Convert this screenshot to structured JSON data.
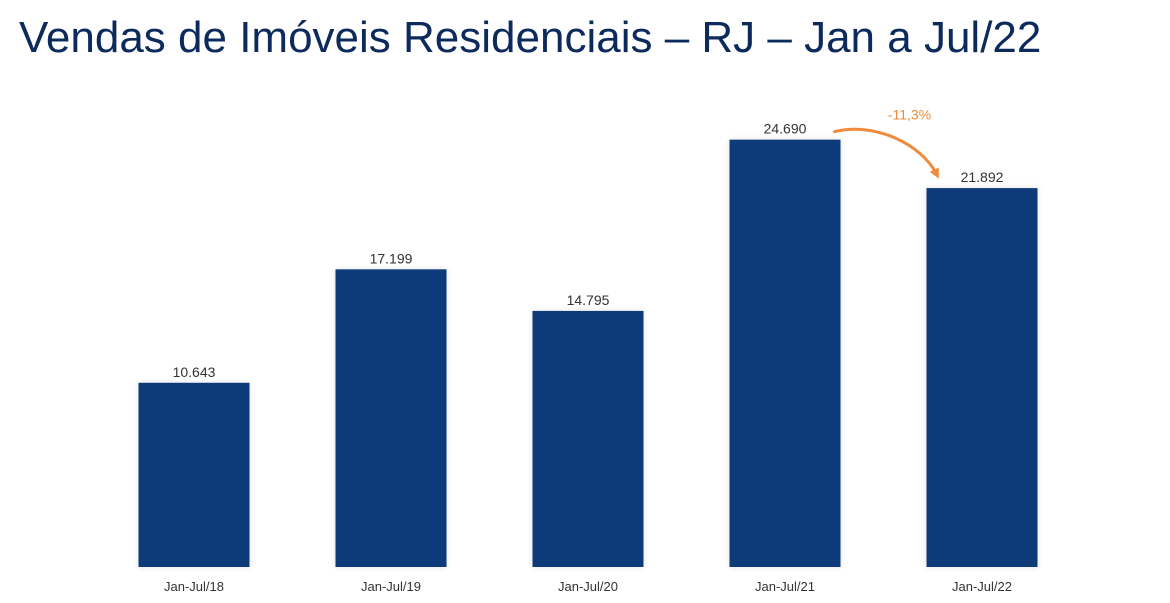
{
  "chart_data": {
    "type": "bar",
    "title": "Vendas de Imóveis Residenciais – RJ – Jan a Jul/22",
    "categories": [
      "Jan-Jul/18",
      "Jan-Jul/19",
      "Jan-Jul/20",
      "Jan-Jul/21",
      "Jan-Jul/22"
    ],
    "values": [
      10643,
      17199,
      14795,
      24690,
      21892
    ],
    "value_labels": [
      "10.643",
      "17.199",
      "14.795",
      "24.690",
      "21.892"
    ],
    "xlabel": "",
    "ylabel": "",
    "ylim": [
      0,
      26000
    ],
    "grid": false,
    "legend": "none",
    "annotation": {
      "text": "-11,3%",
      "from_category": "Jan-Jul/21",
      "to_category": "Jan-Jul/22"
    }
  },
  "colors": {
    "title": "#0d2a5c",
    "bar": "#0a3a7a",
    "annotation": "#f08a3c",
    "text": "#333333"
  }
}
